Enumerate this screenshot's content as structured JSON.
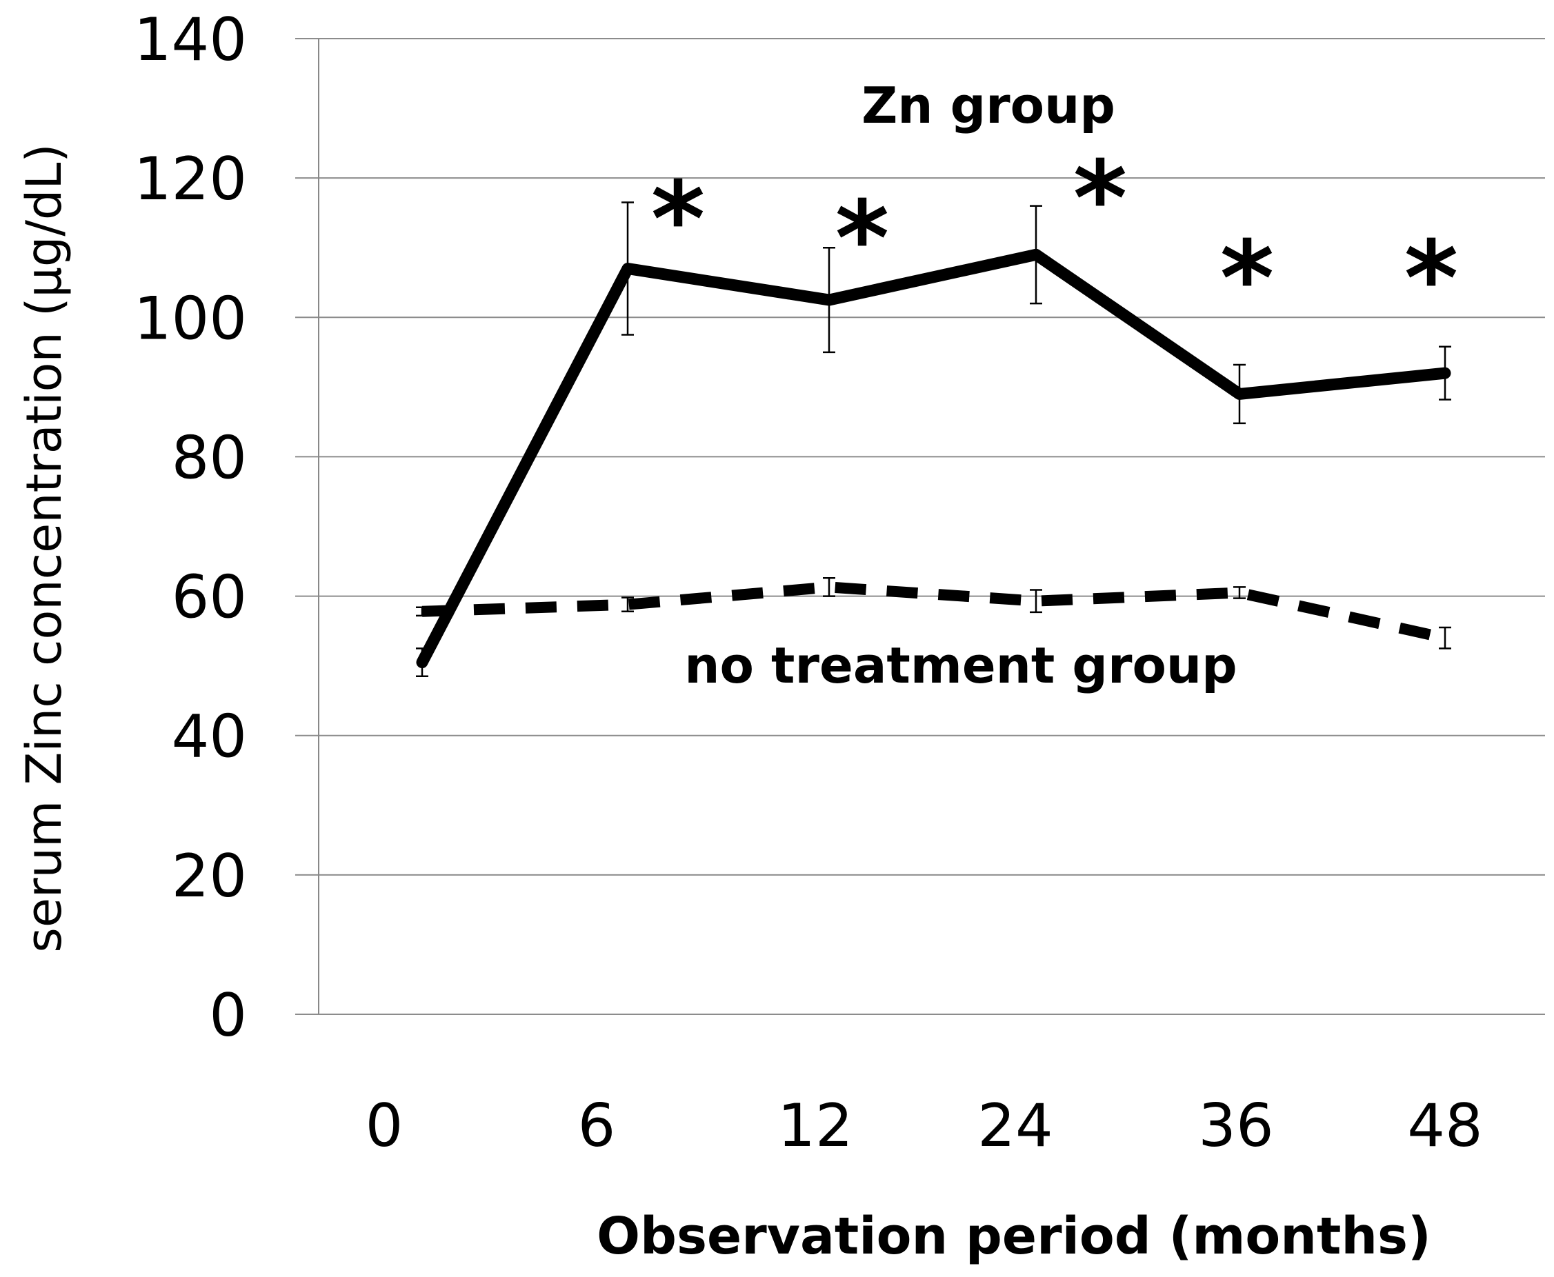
{
  "chart_data": {
    "type": "line",
    "title": "",
    "xlabel": "Observation period (months)",
    "ylabel": "serum Zinc concentration (μg/dL)",
    "categories": [
      "0",
      "6",
      "12",
      "24",
      "36",
      "48"
    ],
    "ylim": [
      0,
      140
    ],
    "yticks": [
      0,
      20,
      40,
      60,
      80,
      100,
      120,
      140
    ],
    "grid": true,
    "series": [
      {
        "name": "Zn group",
        "style": "solid",
        "color": "#000000",
        "values": [
          50.5,
          107,
          102.5,
          109,
          89,
          92
        ],
        "error": [
          2,
          9.5,
          7.5,
          7,
          4.2,
          3.8
        ],
        "significance": [
          "",
          "*",
          "*",
          "*",
          "*",
          "*"
        ]
      },
      {
        "name": "no treatment group",
        "style": "dashed",
        "color": "#000000",
        "values": [
          57.8,
          58.8,
          61.3,
          59.3,
          60.5,
          54
        ],
        "error": [
          0.6,
          1,
          1.3,
          1.6,
          0.8,
          1.5
        ]
      }
    ]
  }
}
